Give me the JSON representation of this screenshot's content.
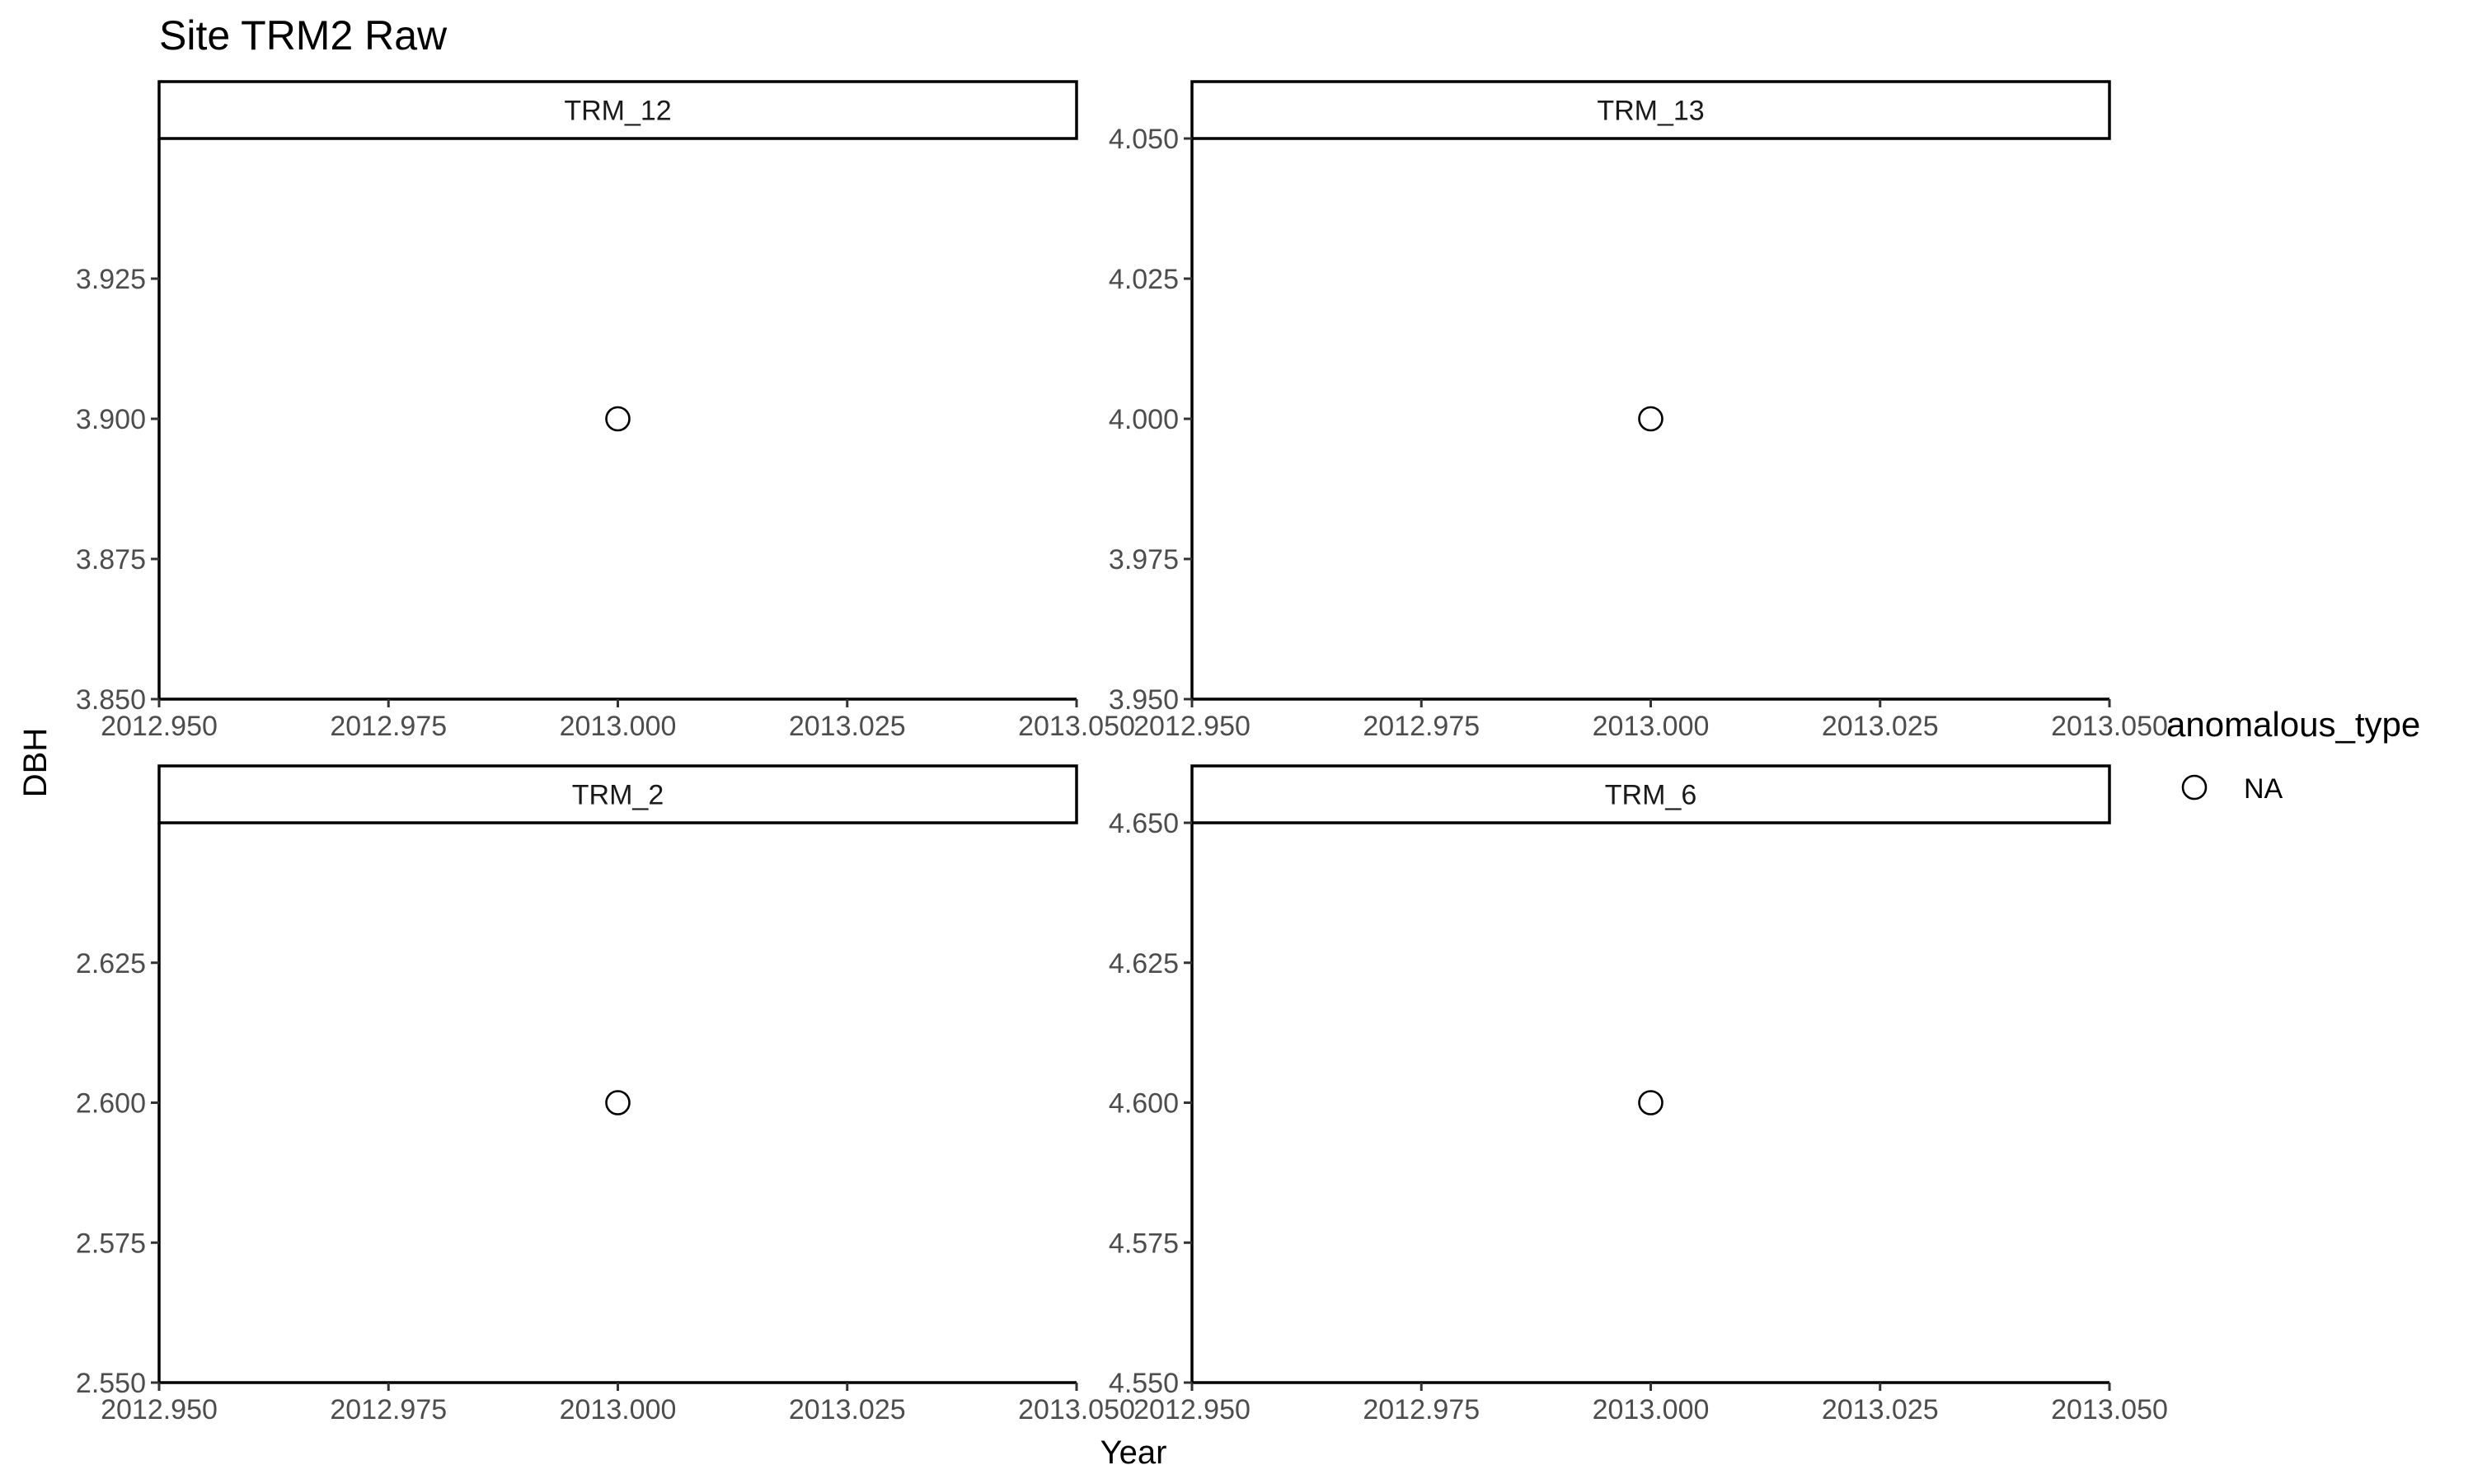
{
  "chart_data": {
    "type": "scatter",
    "title": "Site TRM2 Raw",
    "xlabel": "Year",
    "ylabel": "DBH",
    "grid": false,
    "legend": {
      "title": "anomalous_type",
      "position": "right",
      "entries": [
        {
          "label": "NA",
          "shape": "open-circle",
          "color": "#000000"
        }
      ]
    },
    "panels": [
      {
        "label": "TRM_12",
        "xlim": [
          2012.95,
          2013.05
        ],
        "x_ticks": [
          "2012.950",
          "2012.975",
          "2013.000",
          "2013.025",
          "2013.050"
        ],
        "ylim": [
          3.85,
          3.95
        ],
        "y_ticks": [
          "3.850",
          "3.875",
          "3.900",
          "3.925"
        ],
        "points": [
          {
            "x": 2013.0,
            "y": 3.9
          }
        ]
      },
      {
        "label": "TRM_13",
        "xlim": [
          2012.95,
          2013.05
        ],
        "x_ticks": [
          "2012.950",
          "2012.975",
          "2013.000",
          "2013.025",
          "2013.050"
        ],
        "ylim": [
          3.95,
          4.05
        ],
        "y_ticks": [
          "3.950",
          "3.975",
          "4.000",
          "4.025",
          "4.050"
        ],
        "points": [
          {
            "x": 2013.0,
            "y": 4.0
          }
        ]
      },
      {
        "label": "TRM_2",
        "xlim": [
          2012.95,
          2013.05
        ],
        "x_ticks": [
          "2012.950",
          "2012.975",
          "2013.000",
          "2013.025",
          "2013.050"
        ],
        "ylim": [
          2.55,
          2.65
        ],
        "y_ticks": [
          "2.550",
          "2.575",
          "2.600",
          "2.625"
        ],
        "points": [
          {
            "x": 2013.0,
            "y": 2.6
          }
        ]
      },
      {
        "label": "TRM_6",
        "xlim": [
          2012.95,
          2013.05
        ],
        "x_ticks": [
          "2012.950",
          "2012.975",
          "2013.000",
          "2013.025",
          "2013.050"
        ],
        "ylim": [
          4.55,
          4.65
        ],
        "y_ticks": [
          "4.550",
          "4.575",
          "4.600",
          "4.625",
          "4.650"
        ],
        "points": [
          {
            "x": 2013.0,
            "y": 4.6
          }
        ]
      }
    ]
  }
}
